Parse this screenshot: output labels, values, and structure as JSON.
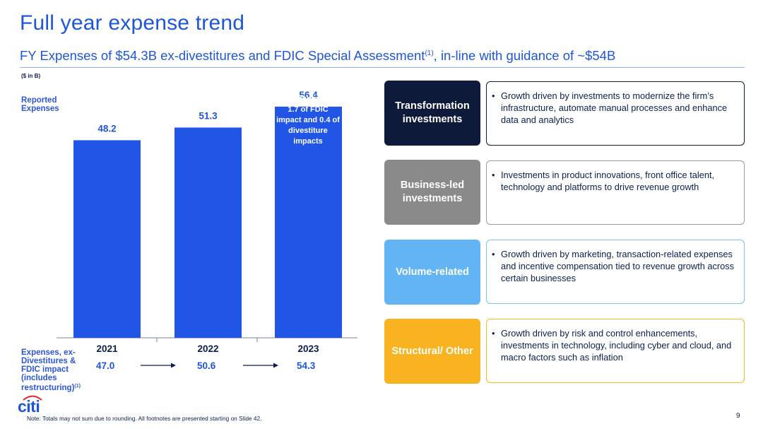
{
  "page": {
    "title": "Full year expense trend",
    "subtitle_main": "FY Expenses of $54.3B ex-divestitures and FDIC Special Assessment",
    "subtitle_sup": "(1)",
    "subtitle_tail": ", in-line with guidance of ~$54B",
    "unit_label": "($ in B)",
    "reported_label": "Reported Expenses",
    "exdiv_label": "Expenses, ex-Divestitures & FDIC impact (includes restructuring)",
    "exdiv_sup": "(1)",
    "footnote": "Note:  Totals may not sum due to rounding. All footnotes are presented starting on Slide 42.",
    "page_number": "9",
    "logo_text": "citi"
  },
  "includes_note": {
    "heading": "Includes:",
    "body": "1.7 of FDIC impact and 0.4 of divestiture impacts"
  },
  "chart_data": {
    "type": "bar",
    "categories": [
      "2021",
      "2022",
      "2023"
    ],
    "values": [
      48.2,
      51.3,
      56.4
    ],
    "value_labels": [
      "48.2",
      "51.3",
      "56.4"
    ],
    "ex_divestiture_values": [
      47.0,
      50.6,
      54.3
    ],
    "ex_divestiture_labels": [
      "47.0",
      "50.6",
      "54.3"
    ],
    "ylim": [
      0,
      60
    ],
    "bar_color": "#2155e6",
    "grid": false,
    "legend": "none"
  },
  "drivers": [
    {
      "label": "Transformation investments",
      "description": "Growth driven by investments to modernize the firm’s infrastructure, automate manual processes and enhance data and analytics",
      "fill_color": "#0d1a3a",
      "border_color": "#0d1a3a"
    },
    {
      "label": "Business-led investments",
      "description": "Investments in product innovations, front office talent, technology and platforms to drive revenue growth",
      "fill_color": "#8a8a8a",
      "border_color": "#9a9a9a"
    },
    {
      "label": "Volume-related",
      "description": "Growth driven by marketing, transaction-related expenses and incentive compensation tied to revenue growth across certain businesses",
      "fill_color": "#63b4f5",
      "border_color": "#7cc0f5"
    },
    {
      "label": "Structural/ Other",
      "description": "Growth driven by risk and control enhancements, investments in technology, including cyber and cloud, and macro factors such as inflation",
      "fill_color": "#f9b320",
      "border_color": "#f5b82a"
    }
  ]
}
